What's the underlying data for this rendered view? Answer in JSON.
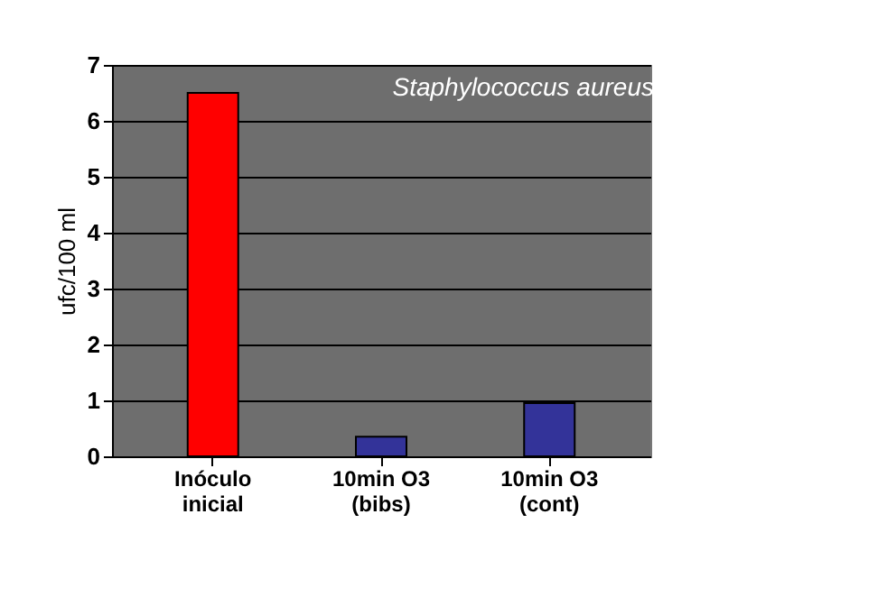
{
  "chart_data": {
    "type": "bar",
    "categories": [
      "Inóculo\ninicial",
      "10min O3\n(bibs)",
      "10min O3\n(cont)"
    ],
    "values": [
      6.5,
      0.35,
      0.95
    ],
    "colors": [
      "#ff0000",
      "#333399",
      "#333399"
    ],
    "ylabel": "ufc/100 ml",
    "ylim": [
      0,
      7
    ],
    "yticks": [
      0,
      1,
      2,
      3,
      4,
      5,
      6,
      7
    ],
    "grid": "y",
    "annotations": [
      "Staphylococcus aureus"
    ]
  }
}
